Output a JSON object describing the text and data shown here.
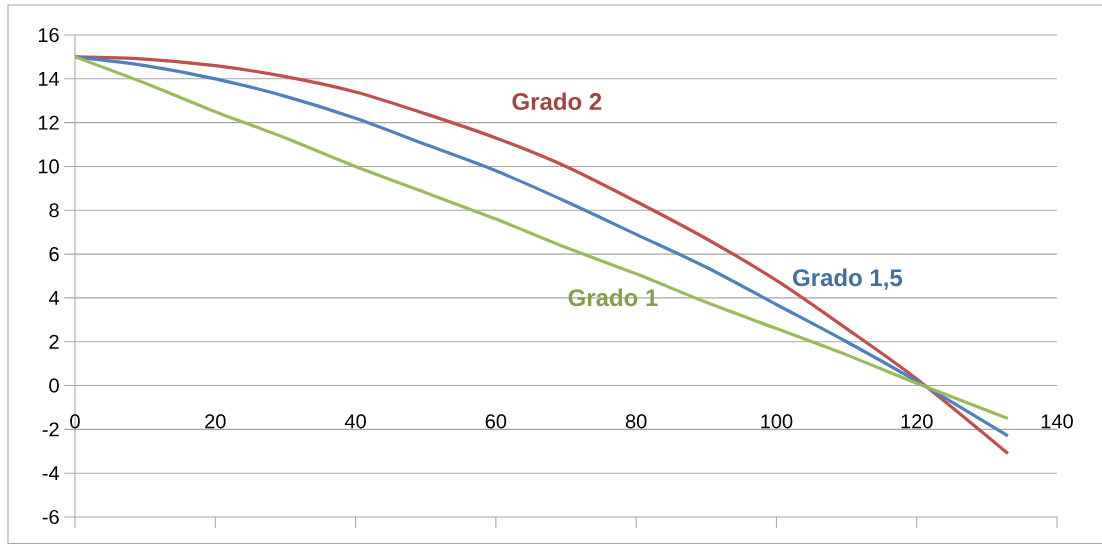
{
  "chart_data": {
    "type": "line",
    "xlim": [
      0,
      140
    ],
    "ylim": [
      -6,
      16
    ],
    "xticks": [
      0,
      20,
      40,
      60,
      80,
      100,
      120,
      140
    ],
    "yticks": [
      -6,
      -4,
      -2,
      0,
      2,
      4,
      6,
      8,
      10,
      12,
      14,
      16
    ],
    "grid": "y",
    "marker": "none",
    "line_style": "solid",
    "x": [
      0,
      10,
      20,
      30,
      40,
      50,
      60,
      70,
      80,
      90,
      100,
      110,
      120,
      133
    ],
    "series": [
      {
        "name": "Grado 2",
        "color": "#c0504d",
        "values": [
          15,
          14.9,
          14.6,
          14.1,
          13.4,
          12.4,
          11.3,
          10.0,
          8.4,
          6.7,
          4.8,
          2.6,
          0.3,
          -3.1
        ]
      },
      {
        "name": "Grado 1,5",
        "color": "#4f81bd",
        "values": [
          15,
          14.6,
          14.0,
          13.2,
          12.2,
          11.0,
          9.8,
          8.4,
          6.9,
          5.4,
          3.7,
          2.0,
          0.2,
          -2.3
        ]
      },
      {
        "name": "Grado 1",
        "color": "#9bbb59",
        "values": [
          15,
          13.8,
          12.5,
          11.3,
          10.0,
          8.8,
          7.6,
          6.3,
          5.1,
          3.8,
          2.6,
          1.4,
          0.1,
          -1.5
        ]
      }
    ]
  }
}
